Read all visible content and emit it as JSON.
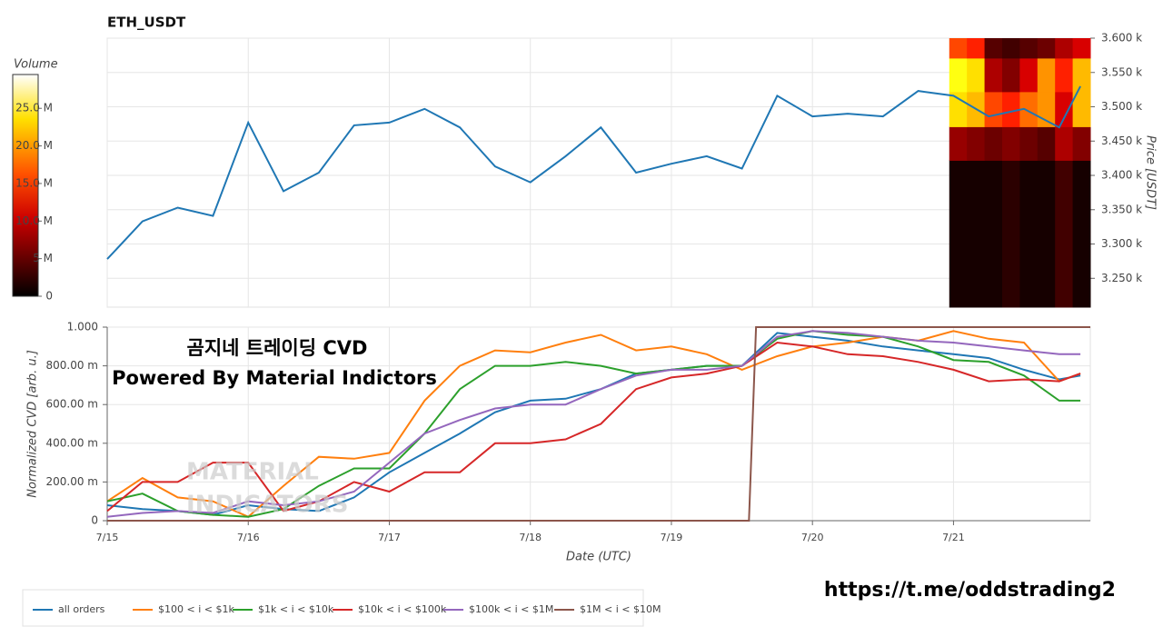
{
  "chart_data": [
    {
      "type": "line",
      "title": "ETH_USDT",
      "ylabel": "Price [USDT]",
      "color": "#1f77b4",
      "grid": true,
      "x": [
        0,
        0.25,
        0.5,
        0.75,
        1,
        1.25,
        1.5,
        1.75,
        2,
        2.25,
        2.5,
        2.75,
        3,
        3.25,
        3.5,
        3.75,
        4,
        4.25,
        4.5,
        4.75,
        5,
        5.25,
        5.5,
        5.75,
        6,
        6.25,
        6.5,
        6.75,
        6.9
      ],
      "values": [
        3278,
        3333,
        3353,
        3341,
        3477,
        3377,
        3404,
        3473,
        3477,
        3497,
        3470,
        3413,
        3390,
        3428,
        3470,
        3404,
        3417,
        3428,
        3410,
        3516,
        3486,
        3490,
        3486,
        3523,
        3516,
        3486,
        3497,
        3470,
        3530
      ],
      "xlim": [
        0,
        6.97
      ],
      "xticks": [
        0,
        1,
        2,
        3,
        4,
        5,
        6
      ],
      "ylim": [
        3208,
        3600
      ],
      "yticks": [
        {
          "value": 3250,
          "label": "3.250 k"
        },
        {
          "value": 3300,
          "label": "3.300 k"
        },
        {
          "value": 3350,
          "label": "3.350 k"
        },
        {
          "value": 3400,
          "label": "3.400 k"
        },
        {
          "value": 3450,
          "label": "3.450 k"
        },
        {
          "value": 3500,
          "label": "3.500 k"
        },
        {
          "value": 3550,
          "label": "3.550 k"
        },
        {
          "value": 3600,
          "label": "3.600 k"
        }
      ],
      "heatmap": {
        "xbins": [
          5.97,
          6.095,
          6.22,
          6.345,
          6.47,
          6.595,
          6.72,
          6.845,
          6.97
        ],
        "ybins": [
          3208,
          3422,
          3471,
          3522,
          3571,
          3600
        ],
        "values": [
          [
            1000000,
            1000000,
            1000000,
            2000000,
            1000000,
            1000000,
            3000000,
            1000000
          ],
          [
            7000000,
            6000000,
            5000000,
            6000000,
            5000000,
            4000000,
            8000000,
            6000000
          ],
          [
            22000000,
            20000000,
            14000000,
            12000000,
            16000000,
            18000000,
            10000000,
            20000000
          ],
          [
            24000000,
            22000000,
            8000000,
            6000000,
            10000000,
            18000000,
            12000000,
            20000000
          ],
          [
            14000000,
            12000000,
            4000000,
            3000000,
            4000000,
            5000000,
            8000000,
            10000000
          ]
        ]
      },
      "colorbar": {
        "label": "Volume",
        "clim": [
          0,
          29500000
        ],
        "ticks": [
          0,
          {
            "value": 5000000,
            "label": "5 M"
          },
          {
            "value": 10000000,
            "label": "10.0 M"
          },
          {
            "value": 15000000,
            "label": "15.0 M"
          },
          {
            "value": 20000000,
            "label": "20.0 M"
          },
          {
            "value": 25000000,
            "label": "25.0 M"
          }
        ]
      }
    },
    {
      "type": "line",
      "xlabel": "Date (UTC)",
      "ylabel": "Normalized CVD [arb. u.]",
      "grid": true,
      "legend": "bottom-left",
      "x": [
        0,
        0.25,
        0.5,
        0.75,
        1,
        1.25,
        1.5,
        1.75,
        2,
        2.25,
        2.5,
        2.75,
        3,
        3.25,
        3.5,
        3.75,
        4,
        4.25,
        4.5,
        4.75,
        5,
        5.25,
        5.5,
        5.75,
        6,
        6.25,
        6.5,
        6.75,
        6.9
      ],
      "xlim": [
        0,
        6.97
      ],
      "xticks": [
        {
          "value": 0,
          "label": "7/15"
        },
        {
          "value": 1,
          "label": "7/16"
        },
        {
          "value": 2,
          "label": "7/17"
        },
        {
          "value": 3,
          "label": "7/18"
        },
        {
          "value": 4,
          "label": "7/19"
        },
        {
          "value": 5,
          "label": "7/20"
        },
        {
          "value": 6,
          "label": "7/21"
        }
      ],
      "ylim": [
        0,
        1
      ],
      "yticks": [
        0,
        {
          "value": 0.2,
          "label": "200.00 m"
        },
        {
          "value": 0.4,
          "label": "400.00 m"
        },
        {
          "value": 0.6,
          "label": "600.00 m"
        },
        {
          "value": 0.8,
          "label": "800.00 m"
        },
        {
          "value": 1,
          "label": "1.000"
        }
      ],
      "series": [
        {
          "name": "all orders",
          "color": "#1f77b4",
          "values": [
            0.08,
            0.06,
            0.05,
            0.03,
            0.08,
            0.06,
            0.05,
            0.12,
            0.25,
            0.35,
            0.45,
            0.56,
            0.62,
            0.63,
            0.68,
            0.76,
            0.78,
            0.8,
            0.8,
            0.97,
            0.95,
            0.93,
            0.9,
            0.88,
            0.86,
            0.84,
            0.78,
            0.73,
            0.75
          ]
        },
        {
          "name": "$100 < i < $1k",
          "color": "#ff7f0e",
          "values": [
            0.1,
            0.22,
            0.12,
            0.1,
            0.02,
            0.18,
            0.33,
            0.32,
            0.35,
            0.62,
            0.8,
            0.88,
            0.87,
            0.92,
            0.96,
            0.88,
            0.9,
            0.86,
            0.78,
            0.85,
            0.9,
            0.92,
            0.95,
            0.93,
            0.98,
            0.94,
            0.92,
            0.72,
            0.76
          ]
        },
        {
          "name": "$1k < i < $10k",
          "color": "#2ca02c",
          "values": [
            0.1,
            0.14,
            0.05,
            0.03,
            0.02,
            0.06,
            0.18,
            0.27,
            0.27,
            0.45,
            0.68,
            0.8,
            0.8,
            0.82,
            0.8,
            0.76,
            0.78,
            0.8,
            0.8,
            0.94,
            0.98,
            0.96,
            0.95,
            0.9,
            0.83,
            0.82,
            0.75,
            0.62,
            0.62
          ]
        },
        {
          "name": "$10k < i < $100k",
          "color": "#d62728",
          "values": [
            0.05,
            0.2,
            0.2,
            0.3,
            0.3,
            0.05,
            0.1,
            0.2,
            0.15,
            0.25,
            0.25,
            0.4,
            0.4,
            0.42,
            0.5,
            0.68,
            0.74,
            0.76,
            0.8,
            0.92,
            0.9,
            0.86,
            0.85,
            0.82,
            0.78,
            0.72,
            0.73,
            0.72,
            0.76
          ]
        },
        {
          "name": "$100k < i < $1M",
          "color": "#9467bd",
          "values": [
            0.02,
            0.04,
            0.05,
            0.04,
            0.1,
            0.08,
            0.1,
            0.15,
            0.3,
            0.45,
            0.52,
            0.58,
            0.6,
            0.6,
            0.68,
            0.75,
            0.78,
            0.78,
            0.8,
            0.95,
            0.98,
            0.97,
            0.95,
            0.93,
            0.92,
            0.9,
            0.88,
            0.86,
            0.86
          ]
        },
        {
          "name": "$1M < i < $10M",
          "color": "#8c564b",
          "x": [
            0,
            4.55,
            4.6,
            6.97
          ],
          "values": [
            0,
            0,
            1,
            1
          ]
        }
      ],
      "annotations": [
        "곰지네 트레이딩 CVD",
        "Powered By Material Indictors",
        "MATERIAL",
        "INDICATORS",
        "https://t.me/oddstrading2"
      ]
    }
  ]
}
